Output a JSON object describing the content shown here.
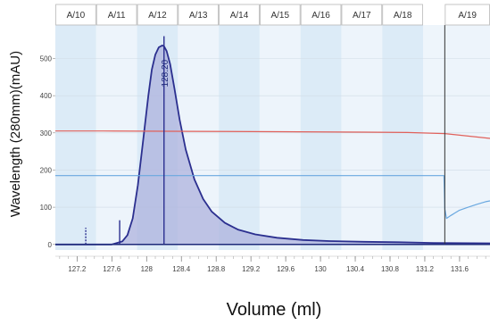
{
  "chart_data": {
    "type": "line",
    "title": "",
    "xlabel": "Volume (ml)",
    "ylabel": "Wavelength (280mm)(mAU)",
    "xlim": [
      126.95,
      131.95
    ],
    "ylim": [
      -15,
      590
    ],
    "x_ticks": [
      127.2,
      127.6,
      128,
      128.4,
      128.8,
      129.2,
      129.6,
      130,
      130.4,
      130.8,
      131.2,
      131.6
    ],
    "x_tick_labels": [
      "127.2",
      "127.6",
      "128",
      "128.4",
      "128.8",
      "129.2",
      "129.6",
      "130",
      "130.4",
      "130.8",
      "131.2",
      "131.6"
    ],
    "y_ticks": [
      0,
      100,
      200,
      300,
      400,
      500
    ],
    "y_tick_labels": [
      "0",
      "100",
      "200",
      "300",
      "400",
      "500"
    ],
    "fractions": [
      {
        "label": "A/10",
        "start": 126.95,
        "end": 127.42
      },
      {
        "label": "A/11",
        "start": 127.42,
        "end": 127.89
      },
      {
        "label": "A/12",
        "start": 127.89,
        "end": 128.36
      },
      {
        "label": "A/13",
        "start": 128.36,
        "end": 128.83
      },
      {
        "label": "A/14",
        "start": 128.83,
        "end": 129.3
      },
      {
        "label": "A/15",
        "start": 129.3,
        "end": 129.77
      },
      {
        "label": "A/16",
        "start": 129.77,
        "end": 130.24
      },
      {
        "label": "A/17",
        "start": 130.24,
        "end": 130.71
      },
      {
        "label": "A/18",
        "start": 130.71,
        "end": 131.18
      },
      {
        "label": "A/19",
        "start": 131.43,
        "end": 131.95
      }
    ],
    "series": [
      {
        "color": "#2b2f8f",
        "fill": "#aeb3de",
        "x": [
          126.95,
          127.6,
          127.72,
          127.78,
          127.84,
          127.9,
          127.96,
          128.02,
          128.06,
          128.1,
          128.14,
          128.18,
          128.2,
          128.23,
          128.27,
          128.32,
          128.38,
          128.45,
          128.55,
          128.65,
          128.75,
          128.9,
          129.05,
          129.25,
          129.5,
          129.8,
          130.1,
          130.5,
          130.9,
          131.3,
          131.95
        ],
        "y": [
          0,
          0,
          8,
          25,
          70,
          160,
          280,
          400,
          470,
          510,
          530,
          535,
          533,
          520,
          485,
          420,
          335,
          255,
          175,
          122,
          88,
          58,
          40,
          27,
          18,
          12,
          9,
          7,
          6,
          4,
          3
        ]
      },
      {
        "color": "#e0605a",
        "x": [
          126.95,
          127.5,
          128.5,
          129.5,
          130.5,
          131.0,
          131.43,
          131.95
        ],
        "y": [
          305,
          305,
          304,
          303,
          302,
          301,
          298,
          285
        ]
      },
      {
        "color": "#6aa8e0",
        "x": [
          126.95,
          131.42,
          131.43,
          131.45,
          131.5,
          131.6,
          131.7,
          131.8,
          131.9,
          131.95
        ],
        "y": [
          185,
          185,
          95,
          70,
          78,
          92,
          100,
          108,
          115,
          117
        ]
      }
    ],
    "annotations": [
      {
        "text": "128.20",
        "x": 128.2,
        "y": 460
      }
    ],
    "markers": [
      {
        "x": 127.3,
        "y_top": 45,
        "style": "dashed"
      },
      {
        "x": 127.69,
        "y_top": 65,
        "style": "solid"
      },
      {
        "x": 128.2,
        "y_top": 560,
        "style": "solid"
      },
      {
        "x": 131.43,
        "y_top": 590,
        "style": "solid"
      }
    ]
  }
}
